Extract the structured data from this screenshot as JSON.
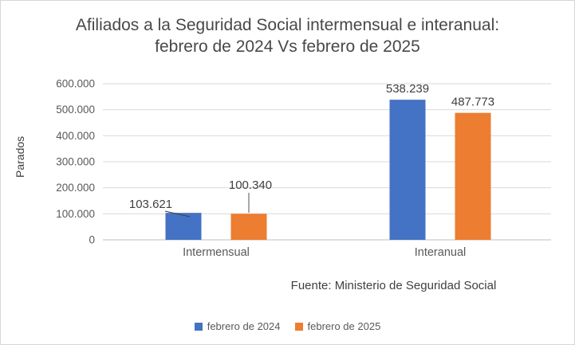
{
  "chart_data": {
    "type": "bar",
    "title": "Afiliados a la Seguridad Social intermensual e interanual: febrero de 2024 Vs febrero de 2025",
    "ylabel": "Parados",
    "xlabel": "",
    "categories": [
      "Intermensual",
      "Interanual"
    ],
    "series": [
      {
        "name": "febrero de 2024",
        "color": "#4472C4",
        "values": [
          103621,
          538239
        ],
        "labels": [
          "103.621",
          "538.239"
        ]
      },
      {
        "name": "febrero de 2025",
        "color": "#ED7D31",
        "values": [
          100340,
          487773
        ],
        "labels": [
          "100.340",
          "487.773"
        ]
      }
    ],
    "ylim": [
      0,
      600000
    ],
    "yticks": [
      {
        "value": 0,
        "label": "0"
      },
      {
        "value": 100000,
        "label": "100.000"
      },
      {
        "value": 200000,
        "label": "200.000"
      },
      {
        "value": 300000,
        "label": "300.000"
      },
      {
        "value": 400000,
        "label": "400.000"
      },
      {
        "value": 500000,
        "label": "500.000"
      },
      {
        "value": 600000,
        "label": "600.000"
      }
    ],
    "grid": true,
    "legend_position": "bottom",
    "source": "Fuente: Ministerio de Seguridad Social",
    "colors": {
      "gridline": "#D9D9D9",
      "axis_line": "#BFBFBF",
      "tick_text": "#595959",
      "label_text": "#404040"
    }
  }
}
